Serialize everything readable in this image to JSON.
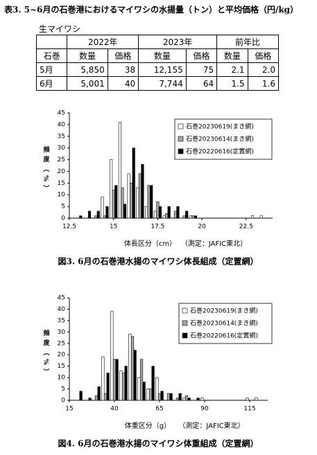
{
  "title": "表3. 5~6月の石巻港におけるマイワシの水揚量（トン）と平均価格（円/kg）",
  "table": {
    "caption": "生マイワシ",
    "groups": [
      "2022年",
      "2023年",
      "前年比"
    ],
    "columns": [
      "石巻",
      "数量",
      "価格",
      "数量",
      "価格",
      "数量",
      "価格"
    ],
    "rows": [
      [
        "5月",
        "5,850",
        "38",
        "12,155",
        "75",
        "2.1",
        "2.0"
      ],
      [
        "6月",
        "5,001",
        "40",
        "7,744",
        "64",
        "1.5",
        "1.6"
      ]
    ]
  },
  "chart_data": [
    {
      "type": "bar",
      "caption": "図3. 6月の石巻港水揚のマイワシ体長組成（定置網）",
      "xlabel": "体長区分（cm）",
      "note": "（測定：JAFIC東北）",
      "ylabel": "頻度（%）",
      "x": [
        13,
        13.5,
        14,
        14.5,
        15,
        15.5,
        16,
        16.5,
        17,
        17.5,
        18,
        18.5,
        19,
        19.5,
        20,
        20.5,
        21,
        21.5,
        22,
        22.5,
        23,
        23.5
      ],
      "xlim": [
        12.5,
        24
      ],
      "xticks": [
        12.5,
        15,
        17.5,
        20,
        22.5
      ],
      "ylim": [
        0,
        45
      ],
      "yticks": [
        0,
        5,
        10,
        15,
        20,
        25,
        30,
        35,
        40,
        45
      ],
      "legend": "upper right",
      "series": [
        {
          "name": "石巻20230619(まき網)",
          "color": "#ffffff",
          "values": [
            0,
            0,
            0,
            9,
            25,
            41,
            19,
            13,
            5,
            3,
            1,
            0,
            0,
            1,
            0,
            0,
            0,
            0,
            0,
            0,
            1,
            1
          ]
        },
        {
          "name": "石巻20230614(まき網)",
          "color": "#a6a6a6",
          "values": [
            0,
            0,
            1,
            1,
            12,
            13,
            15,
            19,
            14,
            7,
            2,
            3,
            1,
            1,
            0,
            0,
            0,
            0,
            0,
            0,
            0,
            0
          ]
        },
        {
          "name": "石巻20220616(定置網)",
          "color": "#000000",
          "values": [
            1,
            3,
            3,
            5,
            14,
            6,
            30,
            23,
            14,
            5,
            5,
            5,
            3,
            1,
            0,
            0,
            0,
            0,
            0,
            0,
            0,
            0
          ]
        }
      ]
    },
    {
      "type": "bar",
      "caption": "図4. 6月の石巻港水揚のマイワシ体重組成（定置網）",
      "xlabel": "体重区分（g）",
      "note": "（測定：JAFIC東北）",
      "ylabel": "頻度（%）",
      "x": [
        20,
        25,
        30,
        35,
        40,
        45,
        50,
        55,
        60,
        65,
        70,
        75,
        80,
        85,
        90,
        95,
        100,
        105,
        110,
        115,
        120
      ],
      "xlim": [
        15,
        125
      ],
      "xticks": [
        15,
        40,
        65,
        90,
        115
      ],
      "ylim": [
        0,
        45
      ],
      "yticks": [
        0,
        5,
        10,
        15,
        20,
        25,
        30,
        35,
        40,
        45
      ],
      "legend": "upper right",
      "series": [
        {
          "name": "石巻20230619(まき網)",
          "color": "#ffffff",
          "values": [
            0,
            0,
            0,
            19,
            39,
            13,
            29,
            10,
            5,
            10,
            0,
            0,
            1,
            0,
            1,
            0,
            0,
            0,
            0,
            1,
            1
          ]
        },
        {
          "name": "石巻20230614(まき網)",
          "color": "#a6a6a6",
          "values": [
            0,
            0,
            2,
            3,
            18,
            12,
            28,
            18,
            5,
            3,
            3,
            1,
            2,
            0,
            0,
            0,
            0,
            0,
            0,
            0,
            0
          ]
        },
        {
          "name": "石巻20220616(定置網)",
          "color": "#000000",
          "values": [
            4,
            1,
            6,
            12,
            18,
            15,
            22,
            8,
            15,
            4,
            3,
            3,
            1,
            1,
            0,
            0,
            0,
            0,
            0,
            0,
            0
          ]
        }
      ]
    }
  ]
}
